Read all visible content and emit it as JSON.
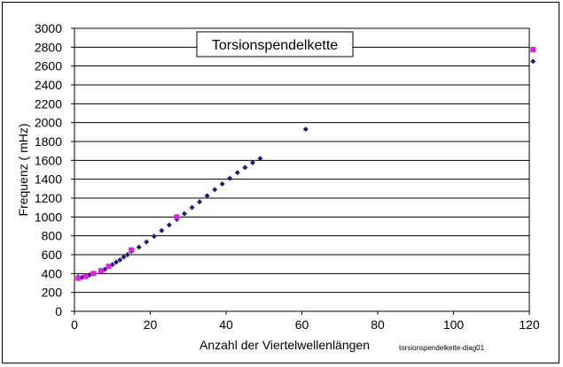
{
  "chart_data": {
    "type": "scatter",
    "title": "Torsionspendelkette",
    "xlabel": "Anzahl der Viertelwellenlängen",
    "ylabel": "Frequenz ( mHz)",
    "footnote": "torsionspendelkette-diag01",
    "xlim": [
      0,
      120
    ],
    "ylim": [
      0,
      3000
    ],
    "xticks": [
      0,
      20,
      40,
      60,
      80,
      100,
      120
    ],
    "yticks": [
      0,
      200,
      400,
      600,
      800,
      1000,
      1200,
      1400,
      1600,
      1800,
      2000,
      2200,
      2400,
      2600,
      2800,
      3000
    ],
    "grid": "horizontal",
    "legend": "none",
    "series": [
      {
        "color": "#1f1f6e",
        "marker": "diamond",
        "points": [
          [
            1,
            365
          ],
          [
            2,
            360
          ],
          [
            3,
            370
          ],
          [
            4,
            385
          ],
          [
            5,
            400
          ],
          [
            7,
            425
          ],
          [
            8,
            445
          ],
          [
            9,
            480
          ],
          [
            10,
            495
          ],
          [
            11,
            520
          ],
          [
            12,
            545
          ],
          [
            13,
            575
          ],
          [
            14,
            600
          ],
          [
            15,
            635
          ],
          [
            17,
            680
          ],
          [
            19,
            735
          ],
          [
            21,
            795
          ],
          [
            23,
            855
          ],
          [
            25,
            915
          ],
          [
            27,
            975
          ],
          [
            29,
            1035
          ],
          [
            31,
            1100
          ],
          [
            33,
            1160
          ],
          [
            35,
            1225
          ],
          [
            37,
            1290
          ],
          [
            39,
            1350
          ],
          [
            41,
            1410
          ],
          [
            43,
            1470
          ],
          [
            45,
            1525
          ],
          [
            47,
            1575
          ],
          [
            49,
            1620
          ],
          [
            61,
            1930
          ],
          [
            121,
            2650
          ]
        ]
      },
      {
        "color": "#e020e0",
        "marker": "square",
        "points": [
          [
            1,
            350
          ],
          [
            3,
            370
          ],
          [
            5,
            400
          ],
          [
            7,
            430
          ],
          [
            9,
            475
          ],
          [
            15,
            650
          ],
          [
            27,
            1000
          ],
          [
            121,
            2775
          ]
        ]
      }
    ]
  }
}
